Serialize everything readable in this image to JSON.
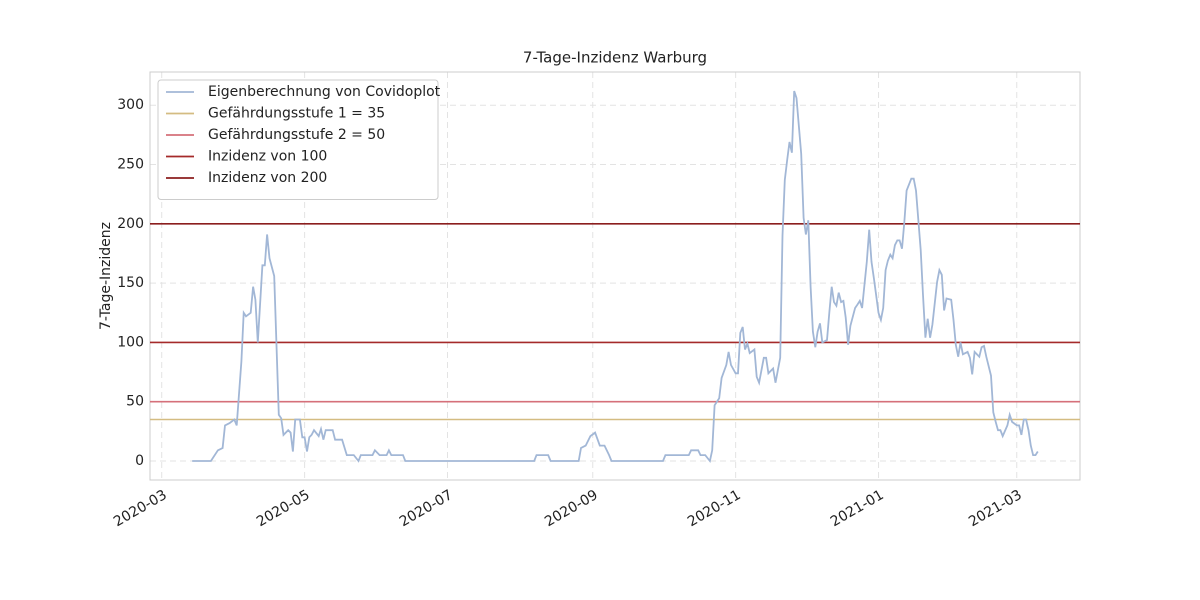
{
  "chart_data": {
    "type": "line",
    "title": "7-Tage-Inzidenz Warburg",
    "y_label": "7-Tage-Inzidenz",
    "xlim": [
      -5,
      392
    ],
    "xticks": [
      {
        "value": 0,
        "label": "2020-03"
      },
      {
        "value": 61,
        "label": "2020-05"
      },
      {
        "value": 122,
        "label": "2020-07"
      },
      {
        "value": 184,
        "label": "2020-09"
      },
      {
        "value": 245,
        "label": "2020-11"
      },
      {
        "value": 306,
        "label": "2021-01"
      },
      {
        "value": 365,
        "label": "2021-03"
      }
    ],
    "ylim": [
      -16,
      328
    ],
    "yticks": [
      0,
      50,
      100,
      150,
      200,
      250,
      300
    ],
    "grid": true,
    "legend": "upper left",
    "series": [
      {
        "name": "Eigenberechnung von Covidoplot",
        "color": "#a2b7d6",
        "x": [
          13,
          21,
          24,
          26,
          27,
          29,
          31,
          32,
          34,
          35,
          36,
          38,
          39,
          40,
          41,
          43,
          44,
          45,
          46,
          48,
          50,
          51,
          52,
          54,
          55,
          56,
          57,
          59,
          60,
          61,
          62,
          63,
          64,
          65,
          67,
          68,
          69,
          70,
          73,
          74,
          77,
          79,
          82,
          84,
          85,
          90,
          91,
          93,
          96,
          97,
          98,
          103,
          104,
          159,
          160,
          165,
          166,
          178,
          179,
          181,
          183,
          185,
          187,
          189,
          191,
          192,
          214,
          215,
          225,
          226,
          229,
          230,
          232,
          234,
          235,
          236,
          238,
          239,
          241,
          242,
          243,
          245,
          246,
          247,
          248,
          249,
          250,
          251,
          253,
          254,
          255,
          257,
          258,
          259,
          261,
          262,
          264,
          265,
          266,
          267,
          268,
          269,
          270,
          271,
          273,
          274,
          275,
          276,
          277,
          278,
          279,
          280,
          281,
          282,
          284,
          285,
          286,
          287,
          288,
          289,
          290,
          291,
          292,
          293,
          294,
          296,
          297,
          298,
          299,
          301,
          302,
          303,
          304,
          306,
          307,
          308,
          309,
          310,
          311,
          312,
          313,
          314,
          315,
          316,
          317,
          318,
          320,
          321,
          322,
          324,
          325,
          326,
          327,
          328,
          329,
          331,
          332,
          333,
          334,
          335,
          337,
          338,
          339,
          340,
          341,
          342,
          344,
          345,
          346,
          347,
          349,
          350,
          351,
          352,
          354,
          355,
          356,
          357,
          358,
          359,
          361,
          362,
          363,
          365,
          366,
          367,
          368,
          369,
          370,
          371,
          372,
          373,
          374
        ],
        "values": [
          0,
          0,
          9,
          11,
          30,
          32,
          35,
          30,
          84,
          125,
          122,
          125,
          147,
          136,
          100,
          165,
          165,
          191,
          171,
          156,
          39,
          36,
          22,
          26,
          24,
          8,
          35,
          35,
          20,
          20,
          8,
          20,
          22,
          26,
          21,
          27,
          18,
          26,
          26,
          18,
          18,
          5,
          5,
          0,
          5,
          5,
          9,
          5,
          5,
          9,
          5,
          5,
          0,
          0,
          5,
          5,
          0,
          0,
          11,
          13,
          21,
          24,
          13,
          13,
          5,
          0,
          0,
          5,
          5,
          9,
          9,
          5,
          5,
          0,
          9,
          47,
          53,
          70,
          81,
          92,
          81,
          74,
          74,
          108,
          113,
          94,
          99,
          91,
          94,
          71,
          66,
          87,
          87,
          74,
          78,
          66,
          87,
          190,
          237,
          254,
          269,
          260,
          312,
          306,
          259,
          205,
          191,
          203,
          147,
          109,
          96,
          109,
          116,
          100,
          102,
          125,
          147,
          134,
          131,
          142,
          134,
          135,
          121,
          98,
          114,
          129,
          132,
          135,
          129,
          168,
          195,
          168,
          154,
          125,
          119,
          129,
          161,
          169,
          174,
          171,
          182,
          186,
          186,
          179,
          201,
          228,
          238,
          238,
          228,
          178,
          140,
          104,
          120,
          104,
          115,
          151,
          161,
          157,
          127,
          137,
          136,
          119,
          98,
          88,
          100,
          90,
          92,
          87,
          73,
          92,
          88,
          96,
          97,
          88,
          72,
          41,
          33,
          26,
          26,
          21,
          30,
          39,
          33,
          30,
          30,
          22,
          35,
          35,
          26,
          13,
          5,
          5,
          8
        ]
      }
    ],
    "hlines": [
      {
        "name": "Gefährdungsstufe 1 = 35",
        "color": "#d4bc82",
        "value": 35
      },
      {
        "name": "Gefährdungsstufe 2 = 50",
        "color": "#d5707a",
        "value": 50
      },
      {
        "name": "Inzidenz von 100",
        "color": "#a52a2a",
        "value": 100
      },
      {
        "name": "Inzidenz von 200",
        "color": "#8b1e1e",
        "value": 200
      }
    ]
  }
}
